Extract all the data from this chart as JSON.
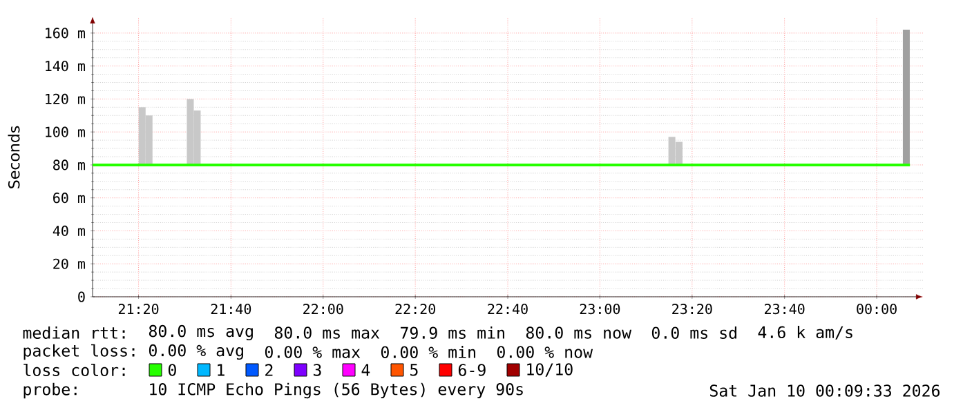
{
  "chart_data": {
    "type": "bar",
    "ylabel": "Seconds",
    "xlim": [
      21.167,
      24.167
    ],
    "ylim": [
      0,
      170
    ],
    "xticks": [
      {
        "value": 21.333,
        "label": "21:20"
      },
      {
        "value": 21.667,
        "label": "21:40"
      },
      {
        "value": 22,
        "label": "22:00"
      },
      {
        "value": 22.333,
        "label": "22:20"
      },
      {
        "value": 22.667,
        "label": "22:40"
      },
      {
        "value": 23,
        "label": "23:00"
      },
      {
        "value": 23.333,
        "label": "23:20"
      },
      {
        "value": 23.667,
        "label": "23:40"
      },
      {
        "value": 24,
        "label": "00:00"
      }
    ],
    "yticks": [
      0,
      {
        "value": 20,
        "label": "20 m"
      },
      {
        "value": 40,
        "label": "40 m"
      },
      {
        "value": 60,
        "label": "60 m"
      },
      {
        "value": 80,
        "label": "80 m"
      },
      {
        "value": 100,
        "label": "100 m"
      },
      {
        "value": 120,
        "label": "120 m"
      },
      {
        "value": 140,
        "label": "140 m"
      },
      {
        "value": 160,
        "label": "160 m"
      }
    ],
    "grid": true,
    "legend": "bottom",
    "legend_title": "loss color:",
    "series": [
      {
        "x": [
          21.346,
          21.371,
          21.52,
          21.545,
          23.26,
          23.286,
          24.107
        ],
        "base": [
          80,
          80,
          80,
          80,
          80,
          80,
          80
        ],
        "values": [
          35,
          30,
          40,
          33,
          17,
          14,
          82
        ],
        "colors": [
          "#c8c8c8",
          "#c8c8c8",
          "#c8c8c8",
          "#c8c8c8",
          "#c8c8c8",
          "#c8c8c8",
          "#a0a0a0"
        ]
      },
      {
        "type": "line",
        "name": "0",
        "color": "#26ff00",
        "x": [
          21.167,
          24.12
        ],
        "values": [
          80,
          80
        ]
      },
      {
        "type": "line",
        "name": "1",
        "color": "#00b8ff"
      },
      {
        "type": "line",
        "name": "2",
        "color": "#0059ff"
      },
      {
        "type": "line",
        "name": "3",
        "color": "#7e00ff"
      },
      {
        "type": "line",
        "name": "4",
        "color": "#ff00ff"
      },
      {
        "type": "line",
        "name": "5",
        "color": "#ff5500"
      },
      {
        "type": "line",
        "name": "6-9",
        "color": "#ff0000"
      },
      {
        "type": "line",
        "name": "10/10",
        "color": "#a10000"
      }
    ],
    "annotations": [
      "median rtt:",
      "80.0 ms avg",
      "80.0 ms max",
      "79.9 ms min",
      "80.0 ms now",
      "0.0 ms sd",
      "4.6 k am/s",
      "packet loss:",
      "0.00 % avg",
      "0.00 % max",
      "0.00 % min",
      "0.00 % now",
      "probe:",
      "10 ICMP Echo Pings (56 Bytes) every 90s",
      "Sat Jan 10 00:09:33 2026"
    ]
  }
}
